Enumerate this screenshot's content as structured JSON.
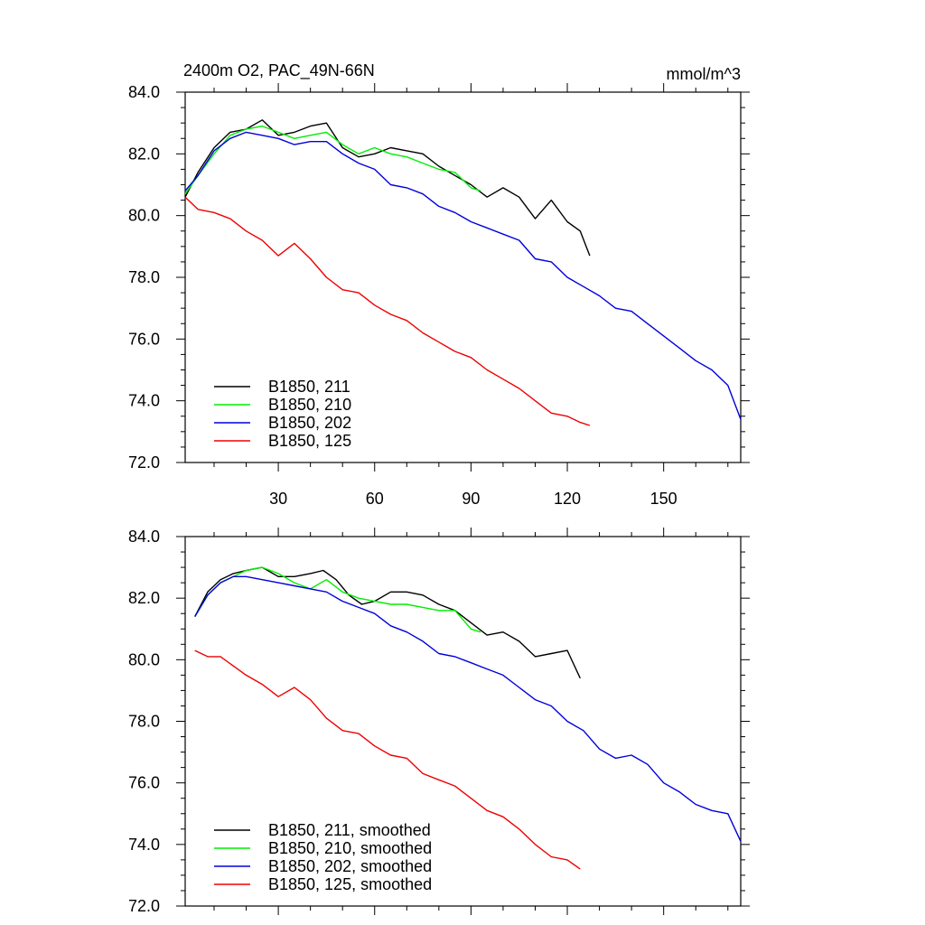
{
  "chart_data": [
    {
      "type": "line",
      "title": "2400m O2, PAC_49N-66N",
      "units": "mmol/m^3",
      "xlabel": "",
      "ylabel": "",
      "xlim": [
        1,
        174
      ],
      "ylim": [
        72,
        84
      ],
      "x_ticks": [
        30,
        60,
        90,
        120,
        150
      ],
      "y_ticks": [
        72,
        74,
        76,
        78,
        80,
        82,
        84
      ],
      "y_tick_labels": [
        "72.0",
        "74.0",
        "76.0",
        "78.0",
        "80.0",
        "82.0",
        "84.0"
      ],
      "legend_position": "bottom-left",
      "series": [
        {
          "name": "B1850, 211",
          "color": "#000000",
          "x": [
            1,
            5,
            10,
            15,
            20,
            25,
            30,
            35,
            40,
            45,
            50,
            55,
            60,
            65,
            70,
            75,
            80,
            85,
            90,
            95,
            100,
            105,
            110,
            115,
            120,
            124,
            127
          ],
          "y": [
            80.6,
            81.4,
            82.2,
            82.7,
            82.8,
            83.1,
            82.6,
            82.7,
            82.9,
            83.0,
            82.2,
            81.9,
            82.0,
            82.2,
            82.1,
            82.0,
            81.6,
            81.3,
            81.0,
            80.6,
            80.9,
            80.6,
            79.9,
            80.5,
            79.8,
            79.5,
            78.7
          ]
        },
        {
          "name": "B1850, 210",
          "color": "#00ee00",
          "x": [
            1,
            5,
            10,
            15,
            20,
            25,
            30,
            35,
            40,
            45,
            50,
            55,
            60,
            65,
            70,
            75,
            80,
            85,
            90,
            93
          ],
          "y": [
            80.7,
            81.3,
            82.0,
            82.6,
            82.8,
            82.9,
            82.7,
            82.5,
            82.6,
            82.7,
            82.3,
            82.0,
            82.2,
            82.0,
            81.9,
            81.7,
            81.5,
            81.4,
            80.9,
            80.8
          ]
        },
        {
          "name": "B1850, 202",
          "color": "#0000dd",
          "x": [
            1,
            5,
            10,
            15,
            20,
            25,
            30,
            35,
            40,
            45,
            50,
            55,
            60,
            65,
            70,
            75,
            80,
            85,
            90,
            95,
            100,
            105,
            110,
            115,
            120,
            125,
            130,
            135,
            140,
            145,
            150,
            155,
            160,
            165,
            170,
            174
          ],
          "y": [
            80.8,
            81.3,
            82.1,
            82.5,
            82.7,
            82.6,
            82.5,
            82.3,
            82.4,
            82.4,
            82.0,
            81.7,
            81.5,
            81.0,
            80.9,
            80.7,
            80.3,
            80.1,
            79.8,
            79.6,
            79.4,
            79.2,
            78.6,
            78.5,
            78.0,
            77.7,
            77.4,
            77.0,
            76.9,
            76.5,
            76.1,
            75.7,
            75.3,
            75.0,
            74.5,
            73.4
          ]
        },
        {
          "name": "B1850, 125",
          "color": "#ee0000",
          "x": [
            1,
            5,
            10,
            15,
            20,
            25,
            30,
            35,
            40,
            45,
            50,
            55,
            60,
            65,
            70,
            75,
            80,
            85,
            90,
            95,
            100,
            105,
            110,
            115,
            120,
            124,
            127
          ],
          "y": [
            80.6,
            80.2,
            80.1,
            79.9,
            79.5,
            79.2,
            78.7,
            79.1,
            78.6,
            78.0,
            77.6,
            77.5,
            77.1,
            76.8,
            76.6,
            76.2,
            75.9,
            75.6,
            75.4,
            75.0,
            74.7,
            74.4,
            74.0,
            73.6,
            73.5,
            73.3,
            73.2
          ]
        }
      ]
    },
    {
      "type": "line",
      "title": "",
      "xlabel": "",
      "ylabel": "",
      "xlim": [
        1,
        174
      ],
      "ylim": [
        72,
        84
      ],
      "x_ticks": [
        30,
        60,
        90,
        120,
        150
      ],
      "y_ticks": [
        72,
        74,
        76,
        78,
        80,
        82,
        84
      ],
      "y_tick_labels": [
        "72.0",
        "74.0",
        "76.0",
        "78.0",
        "80.0",
        "82.0",
        "84.0"
      ],
      "legend_position": "bottom-left",
      "series": [
        {
          "name": "B1850, 211, smoothed",
          "color": "#000000",
          "x": [
            4,
            8,
            12,
            16,
            20,
            25,
            30,
            35,
            40,
            44,
            48,
            52,
            56,
            60,
            65,
            70,
            75,
            80,
            85,
            90,
            95,
            100,
            105,
            110,
            115,
            120,
            124
          ],
          "y": [
            81.4,
            82.2,
            82.6,
            82.8,
            82.9,
            83.0,
            82.7,
            82.7,
            82.8,
            82.9,
            82.6,
            82.1,
            81.8,
            81.9,
            82.2,
            82.2,
            82.1,
            81.8,
            81.6,
            81.2,
            80.8,
            80.9,
            80.6,
            80.1,
            80.2,
            80.3,
            79.4
          ]
        },
        {
          "name": "B1850, 210, smoothed",
          "color": "#00ee00",
          "x": [
            4,
            8,
            12,
            16,
            20,
            25,
            30,
            35,
            40,
            45,
            50,
            55,
            60,
            65,
            70,
            75,
            80,
            85,
            90,
            93
          ],
          "y": [
            81.4,
            82.1,
            82.5,
            82.7,
            82.9,
            83.0,
            82.8,
            82.5,
            82.3,
            82.6,
            82.2,
            82.0,
            81.9,
            81.8,
            81.8,
            81.7,
            81.6,
            81.6,
            81.0,
            80.9
          ]
        },
        {
          "name": "B1850, 202, smoothed",
          "color": "#0000dd",
          "x": [
            4,
            8,
            12,
            16,
            20,
            25,
            30,
            35,
            40,
            45,
            50,
            55,
            60,
            65,
            70,
            75,
            80,
            85,
            90,
            95,
            100,
            105,
            110,
            115,
            120,
            125,
            130,
            135,
            140,
            145,
            150,
            155,
            160,
            165,
            170,
            174
          ],
          "y": [
            81.4,
            82.1,
            82.5,
            82.7,
            82.7,
            82.6,
            82.5,
            82.4,
            82.3,
            82.2,
            81.9,
            81.7,
            81.5,
            81.1,
            80.9,
            80.6,
            80.2,
            80.1,
            79.9,
            79.7,
            79.5,
            79.1,
            78.7,
            78.5,
            78.0,
            77.7,
            77.1,
            76.8,
            76.9,
            76.6,
            76.0,
            75.7,
            75.3,
            75.1,
            75.0,
            74.1
          ]
        },
        {
          "name": "B1850, 125, smoothed",
          "color": "#ee0000",
          "x": [
            4,
            8,
            12,
            16,
            20,
            25,
            30,
            35,
            40,
            45,
            50,
            55,
            60,
            65,
            70,
            75,
            80,
            85,
            90,
            95,
            100,
            105,
            110,
            115,
            120,
            124
          ],
          "y": [
            80.3,
            80.1,
            80.1,
            79.8,
            79.5,
            79.2,
            78.8,
            79.1,
            78.7,
            78.1,
            77.7,
            77.6,
            77.2,
            76.9,
            76.8,
            76.3,
            76.1,
            75.9,
            75.5,
            75.1,
            74.9,
            74.5,
            74.0,
            73.6,
            73.5,
            73.2
          ]
        }
      ]
    }
  ]
}
